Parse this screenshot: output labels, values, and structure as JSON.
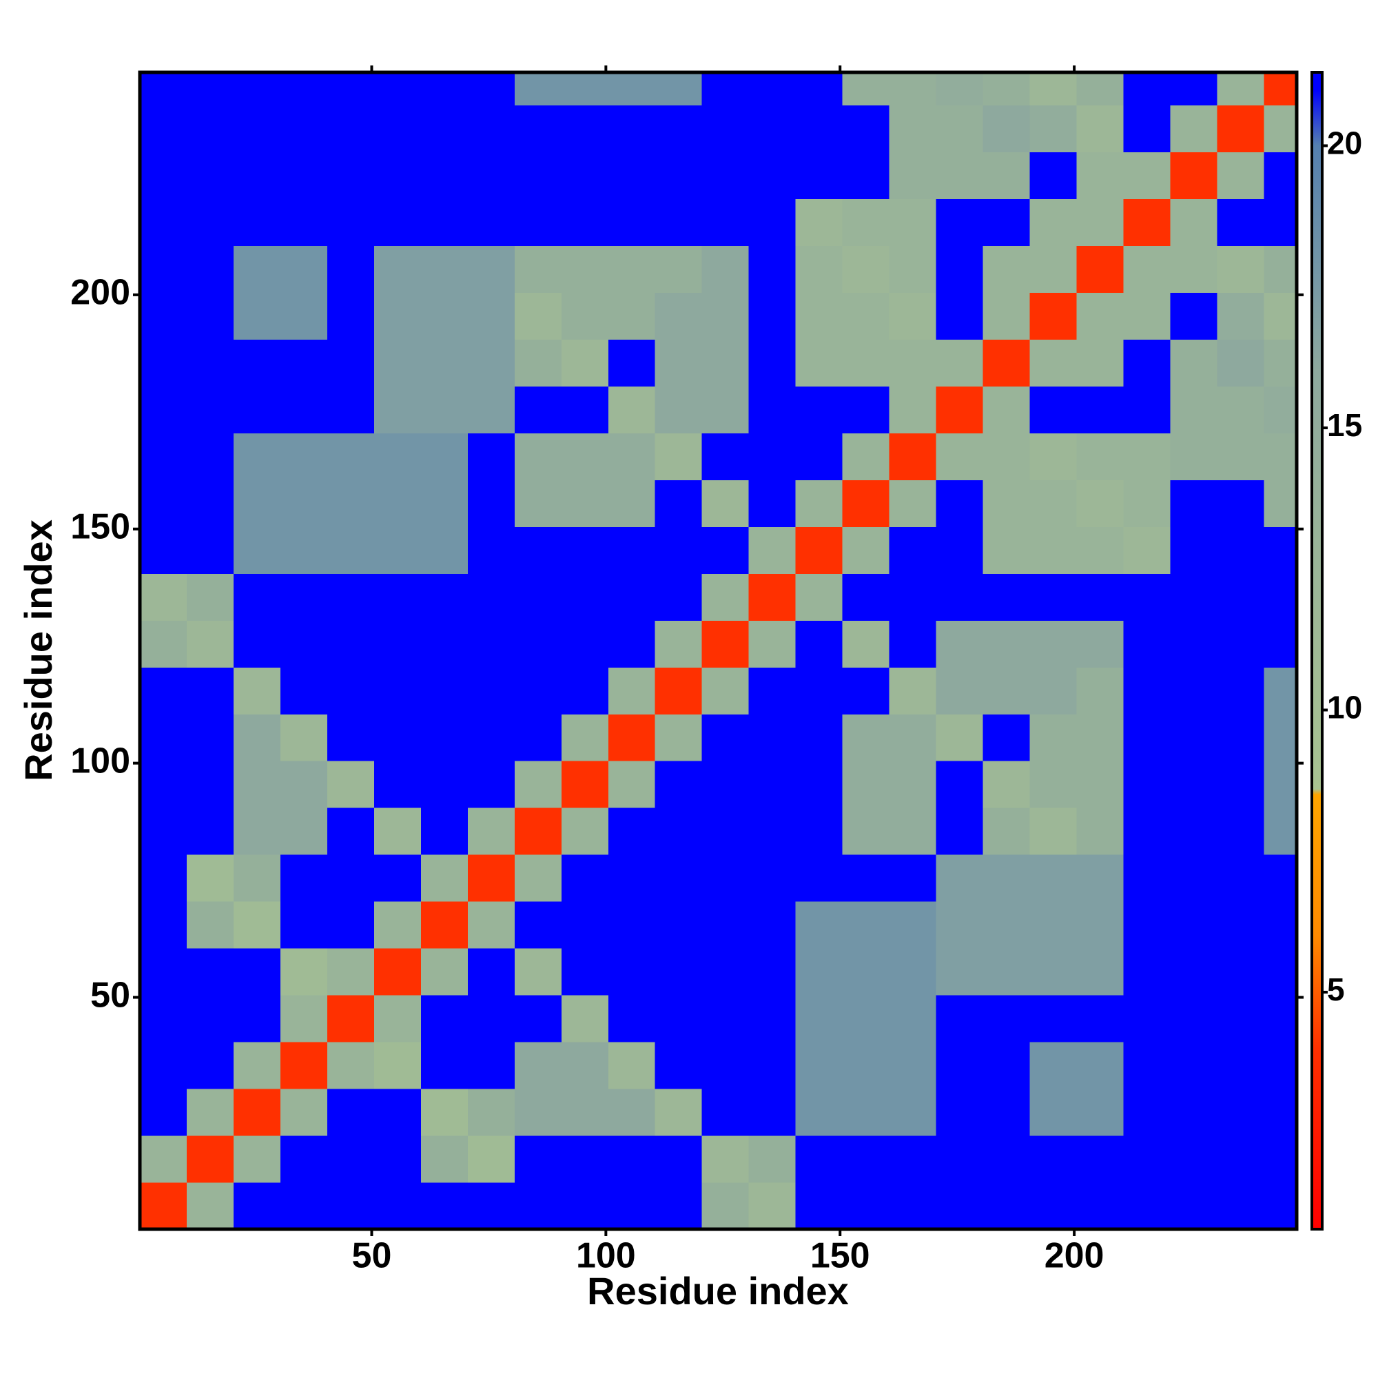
{
  "chart_data": {
    "type": "heatmap",
    "x_label": "Residue index",
    "y_label": "Residue index",
    "xlim": [
      0.5,
      247.5
    ],
    "ylim": [
      0.5,
      247.5
    ],
    "xticks": [
      50,
      100,
      150,
      200
    ],
    "yticks": [
      50,
      100,
      150,
      200
    ],
    "xbins": [
      0.5,
      10.5,
      20.5,
      30.5,
      40.5,
      50.5,
      60.5,
      70.5,
      80.5,
      90.5,
      100.5,
      110.5,
      120.5,
      130.5,
      140.5,
      150.5,
      160.5,
      170.5,
      180.5,
      190.5,
      200.5,
      210.5,
      220.5,
      230.5,
      240.5,
      247.5
    ],
    "ybins": [
      0.5,
      10.5,
      20.5,
      30.5,
      40.5,
      50.5,
      60.5,
      70.5,
      80.5,
      90.5,
      100.5,
      110.5,
      120.5,
      130.5,
      140.5,
      150.5,
      160.5,
      170.5,
      180.5,
      190.5,
      200.5,
      210.5,
      220.5,
      230.5,
      240.5,
      247.5
    ],
    "z": [
      [
        4,
        13,
        21,
        21,
        21,
        21,
        21,
        21,
        21,
        21,
        21,
        21,
        14,
        12,
        21,
        21,
        21,
        21,
        21,
        21,
        21,
        21,
        21,
        21,
        21
      ],
      [
        13,
        4,
        13,
        21,
        21,
        21,
        14,
        11,
        21,
        21,
        21,
        21,
        12,
        14,
        21,
        21,
        21,
        21,
        21,
        21,
        21,
        21,
        21,
        21,
        21
      ],
      [
        21,
        13,
        4,
        13,
        21,
        21,
        11,
        14,
        16,
        16,
        16,
        12,
        21,
        21,
        18,
        18,
        18,
        21,
        21,
        18,
        18,
        21,
        21,
        21,
        21
      ],
      [
        21,
        21,
        13,
        4,
        13,
        11,
        21,
        21,
        16,
        16,
        12,
        21,
        21,
        21,
        18,
        18,
        18,
        21,
        21,
        18,
        18,
        21,
        21,
        21,
        21
      ],
      [
        21,
        21,
        21,
        13,
        4,
        13,
        21,
        21,
        21,
        12,
        21,
        21,
        21,
        21,
        18,
        18,
        18,
        21,
        21,
        21,
        21,
        21,
        21,
        21,
        21
      ],
      [
        21,
        21,
        21,
        11,
        13,
        4,
        13,
        21,
        12,
        21,
        21,
        21,
        21,
        21,
        18,
        18,
        18,
        17,
        17,
        17,
        17,
        21,
        21,
        21,
        21
      ],
      [
        21,
        14,
        11,
        21,
        21,
        13,
        4,
        13,
        21,
        21,
        21,
        21,
        21,
        21,
        18,
        18,
        18,
        17,
        17,
        17,
        17,
        21,
        21,
        21,
        21
      ],
      [
        21,
        11,
        14,
        21,
        21,
        21,
        13,
        4,
        13,
        21,
        21,
        21,
        21,
        21,
        21,
        21,
        21,
        17,
        17,
        17,
        17,
        21,
        21,
        21,
        21
      ],
      [
        21,
        21,
        16,
        16,
        21,
        12,
        21,
        13,
        4,
        13,
        21,
        21,
        21,
        21,
        21,
        15,
        15,
        21,
        14,
        12,
        14,
        21,
        21,
        21,
        18
      ],
      [
        21,
        21,
        16,
        16,
        12,
        21,
        21,
        21,
        13,
        4,
        13,
        21,
        21,
        21,
        21,
        15,
        15,
        21,
        12,
        14,
        14,
        21,
        21,
        21,
        18
      ],
      [
        21,
        21,
        16,
        12,
        21,
        21,
        21,
        21,
        21,
        13,
        4,
        13,
        21,
        21,
        21,
        15,
        15,
        12,
        21,
        14,
        14,
        21,
        21,
        21,
        18
      ],
      [
        21,
        21,
        12,
        21,
        21,
        21,
        21,
        21,
        21,
        21,
        13,
        4,
        13,
        21,
        21,
        21,
        12,
        16,
        16,
        16,
        14,
        21,
        21,
        21,
        18
      ],
      [
        14,
        12,
        21,
        21,
        21,
        21,
        21,
        21,
        21,
        21,
        21,
        13,
        4,
        13,
        21,
        12,
        21,
        16,
        16,
        16,
        16,
        21,
        21,
        21,
        21
      ],
      [
        12,
        14,
        21,
        21,
        21,
        21,
        21,
        21,
        21,
        21,
        21,
        21,
        13,
        4,
        13,
        21,
        21,
        21,
        21,
        21,
        21,
        21,
        21,
        21,
        21
      ],
      [
        21,
        21,
        18,
        18,
        18,
        18,
        18,
        21,
        21,
        21,
        21,
        21,
        21,
        13,
        4,
        13,
        21,
        21,
        13,
        13,
        13,
        12,
        21,
        21,
        21
      ],
      [
        21,
        21,
        18,
        18,
        18,
        18,
        18,
        21,
        15,
        15,
        15,
        21,
        12,
        21,
        13,
        4,
        13,
        21,
        13,
        13,
        12,
        13,
        21,
        21,
        14
      ],
      [
        21,
        21,
        18,
        18,
        18,
        18,
        18,
        21,
        15,
        15,
        15,
        12,
        21,
        21,
        21,
        13,
        4,
        13,
        13,
        12,
        13,
        13,
        14,
        14,
        14
      ],
      [
        21,
        21,
        21,
        21,
        21,
        17,
        17,
        17,
        21,
        21,
        12,
        16,
        16,
        21,
        21,
        21,
        13,
        4,
        13,
        21,
        21,
        21,
        14,
        14,
        15
      ],
      [
        21,
        21,
        21,
        21,
        21,
        17,
        17,
        17,
        14,
        12,
        21,
        16,
        16,
        21,
        13,
        13,
        13,
        13,
        4,
        13,
        13,
        21,
        14,
        16,
        14
      ],
      [
        21,
        21,
        18,
        18,
        21,
        17,
        17,
        17,
        12,
        14,
        14,
        16,
        16,
        21,
        13,
        13,
        12,
        21,
        13,
        4,
        13,
        13,
        21,
        15,
        12
      ],
      [
        21,
        21,
        18,
        18,
        21,
        17,
        17,
        17,
        14,
        14,
        14,
        14,
        16,
        21,
        13,
        12,
        13,
        21,
        13,
        13,
        4,
        13,
        13,
        12,
        14
      ],
      [
        21,
        21,
        21,
        21,
        21,
        21,
        21,
        21,
        21,
        21,
        21,
        21,
        21,
        21,
        12,
        13,
        13,
        21,
        21,
        13,
        13,
        4,
        13,
        21,
        21
      ],
      [
        21,
        21,
        21,
        21,
        21,
        21,
        21,
        21,
        21,
        21,
        21,
        21,
        21,
        21,
        21,
        21,
        14,
        14,
        14,
        21,
        13,
        13,
        4,
        13,
        21
      ],
      [
        21,
        21,
        21,
        21,
        21,
        21,
        21,
        21,
        21,
        21,
        21,
        21,
        21,
        21,
        21,
        21,
        14,
        14,
        16,
        15,
        12,
        21,
        13,
        4,
        13
      ],
      [
        21,
        21,
        21,
        21,
        21,
        21,
        21,
        21,
        18,
        18,
        18,
        18,
        21,
        21,
        21,
        14,
        14,
        15,
        14,
        12,
        14,
        21,
        21,
        13,
        4
      ]
    ],
    "colorbar": {
      "zlim": [
        0.8,
        21.3
      ],
      "ticks": [
        5,
        10,
        15,
        20
      ]
    },
    "colorscale": [
      {
        "value": 0.8,
        "color": "#ff0000"
      },
      {
        "value": 4,
        "color": "#ff3000"
      },
      {
        "value": 6,
        "color": "#ff8a00"
      },
      {
        "value": 8.5,
        "color": "#ffa500"
      },
      {
        "value": 8.6,
        "color": "#a9c391"
      },
      {
        "value": 16,
        "color": "#8ea99e"
      },
      {
        "value": 20,
        "color": "#5580b0"
      },
      {
        "value": 21,
        "color": "#0000ff"
      }
    ]
  }
}
